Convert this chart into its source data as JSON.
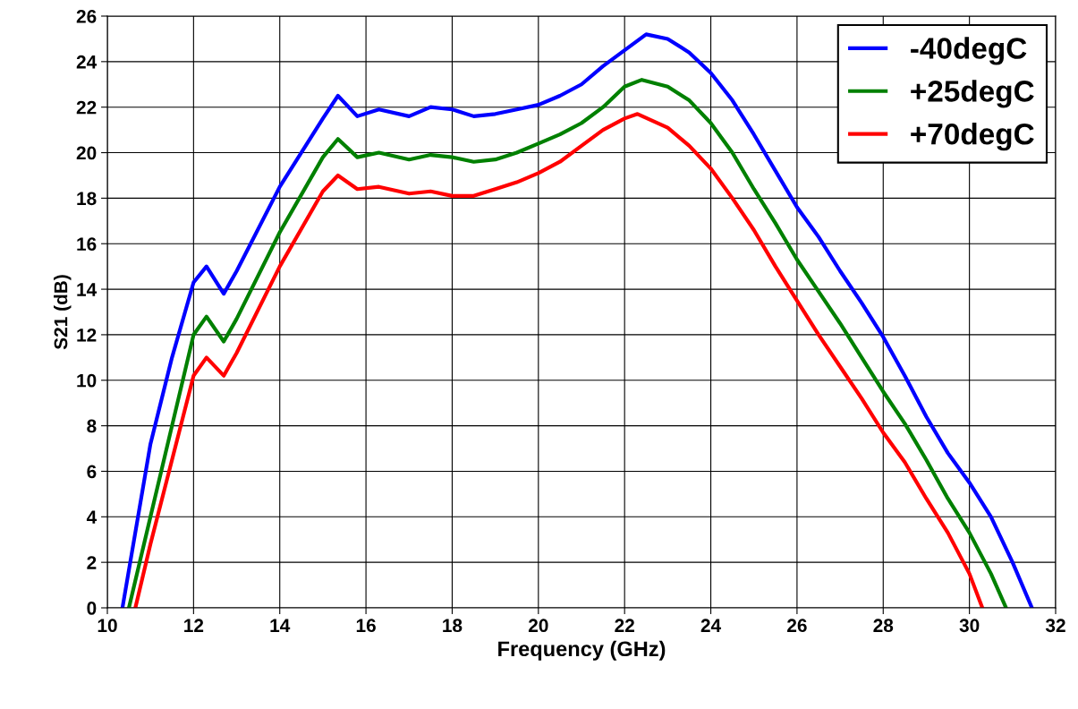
{
  "chart_data": {
    "type": "line",
    "xlabel": "Frequency (GHz)",
    "ylabel": "S21 (dB)",
    "xlim": [
      10,
      32
    ],
    "xticks": [
      10,
      12,
      14,
      16,
      18,
      20,
      22,
      24,
      26,
      28,
      30,
      32
    ],
    "ylim": [
      0,
      26
    ],
    "yticks": [
      0,
      2,
      4,
      6,
      8,
      10,
      12,
      14,
      16,
      18,
      20,
      22,
      24,
      26
    ],
    "grid": true,
    "legend": "top right",
    "line_style": "solid",
    "marker": "none",
    "series": [
      {
        "name": "-40degC",
        "color": "#0000ff",
        "x": [
          10.35,
          11,
          11.5,
          12,
          12.3,
          12.7,
          13,
          14,
          15,
          15.35,
          15.8,
          16.3,
          17,
          17.5,
          18,
          18.5,
          19,
          19.5,
          20,
          20.5,
          21,
          21.5,
          22,
          22.5,
          23,
          23.5,
          24,
          24.5,
          25,
          25.5,
          26,
          26.5,
          27,
          27.5,
          28,
          28.5,
          29,
          29.5,
          30,
          30.5,
          31,
          31.45
        ],
        "values": [
          0,
          7.2,
          11,
          14.3,
          15.0,
          13.8,
          14.8,
          18.5,
          21.5,
          22.5,
          21.6,
          21.9,
          21.6,
          22.0,
          21.9,
          21.6,
          21.7,
          21.9,
          22.1,
          22.5,
          23.0,
          23.8,
          24.5,
          25.2,
          25.0,
          24.4,
          23.5,
          22.3,
          20.8,
          19.2,
          17.6,
          16.3,
          14.8,
          13.4,
          11.9,
          10.2,
          8.4,
          6.8,
          5.5,
          4.0,
          2.0,
          0
        ]
      },
      {
        "name": "+25degC",
        "color": "#008000",
        "x": [
          10.5,
          11,
          11.5,
          12,
          12.3,
          12.7,
          13,
          14,
          15,
          15.35,
          15.8,
          16.3,
          17,
          17.5,
          18,
          18.5,
          19,
          19.5,
          20,
          20.5,
          21,
          21.5,
          22,
          22.4,
          23,
          23.5,
          24,
          24.5,
          25,
          25.5,
          26,
          26.5,
          27,
          27.5,
          28,
          28.5,
          29,
          29.5,
          30,
          30.5,
          30.85
        ],
        "values": [
          0,
          4,
          8,
          12.0,
          12.8,
          11.7,
          12.7,
          16.5,
          19.8,
          20.6,
          19.8,
          20.0,
          19.7,
          19.9,
          19.8,
          19.6,
          19.7,
          20.0,
          20.4,
          20.8,
          21.3,
          22.0,
          22.9,
          23.2,
          22.9,
          22.3,
          21.3,
          20.0,
          18.4,
          16.9,
          15.3,
          13.9,
          12.5,
          11.0,
          9.5,
          8.1,
          6.5,
          4.8,
          3.3,
          1.5,
          0
        ]
      },
      {
        "name": "+70degC",
        "color": "#ff0000",
        "x": [
          10.65,
          11,
          11.5,
          12,
          12.3,
          12.7,
          13,
          14,
          15,
          15.35,
          15.8,
          16.3,
          17,
          17.5,
          18,
          18.5,
          19,
          19.5,
          20,
          20.5,
          21,
          21.5,
          22,
          22.3,
          23,
          23.5,
          24,
          24.5,
          25,
          25.5,
          26,
          26.5,
          27,
          27.5,
          28,
          28.5,
          29,
          29.5,
          30,
          30.3
        ],
        "values": [
          0,
          2.8,
          6.5,
          10.2,
          11.0,
          10.2,
          11.2,
          15.0,
          18.3,
          19.0,
          18.4,
          18.5,
          18.2,
          18.3,
          18.1,
          18.1,
          18.4,
          18.7,
          19.1,
          19.6,
          20.3,
          21.0,
          21.5,
          21.7,
          21.1,
          20.3,
          19.3,
          18.0,
          16.6,
          15.0,
          13.5,
          12.0,
          10.6,
          9.2,
          7.7,
          6.4,
          4.8,
          3.3,
          1.5,
          0
        ]
      }
    ]
  }
}
